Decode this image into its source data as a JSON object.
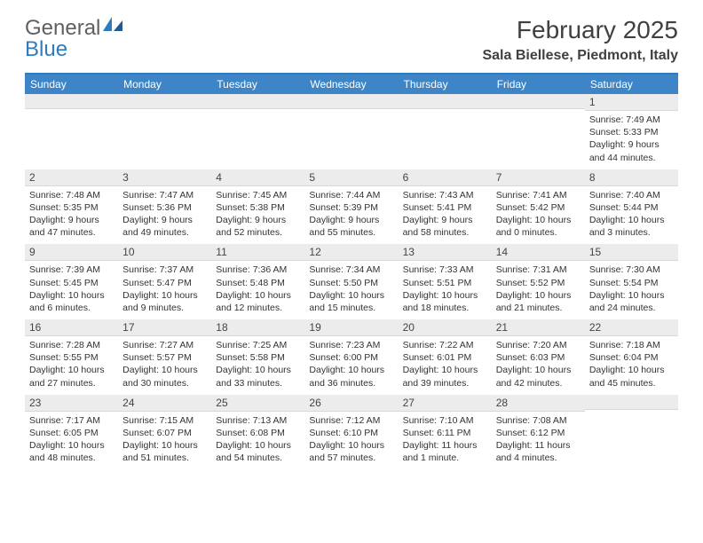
{
  "logo": {
    "part1": "General",
    "part2": "Blue"
  },
  "title": "February 2025",
  "location": "Sala Biellese, Piedmont, Italy",
  "colors": {
    "header_bar": "#3d85c6",
    "accent_border": "#2f7bbf",
    "daynum_bg": "#ececec",
    "text": "#333333"
  },
  "day_names": [
    "Sunday",
    "Monday",
    "Tuesday",
    "Wednesday",
    "Thursday",
    "Friday",
    "Saturday"
  ],
  "weeks": [
    [
      {
        "n": "",
        "sunrise": "",
        "sunset": "",
        "daylight1": "",
        "daylight2": ""
      },
      {
        "n": "",
        "sunrise": "",
        "sunset": "",
        "daylight1": "",
        "daylight2": ""
      },
      {
        "n": "",
        "sunrise": "",
        "sunset": "",
        "daylight1": "",
        "daylight2": ""
      },
      {
        "n": "",
        "sunrise": "",
        "sunset": "",
        "daylight1": "",
        "daylight2": ""
      },
      {
        "n": "",
        "sunrise": "",
        "sunset": "",
        "daylight1": "",
        "daylight2": ""
      },
      {
        "n": "",
        "sunrise": "",
        "sunset": "",
        "daylight1": "",
        "daylight2": ""
      },
      {
        "n": "1",
        "sunrise": "Sunrise: 7:49 AM",
        "sunset": "Sunset: 5:33 PM",
        "daylight1": "Daylight: 9 hours",
        "daylight2": "and 44 minutes."
      }
    ],
    [
      {
        "n": "2",
        "sunrise": "Sunrise: 7:48 AM",
        "sunset": "Sunset: 5:35 PM",
        "daylight1": "Daylight: 9 hours",
        "daylight2": "and 47 minutes."
      },
      {
        "n": "3",
        "sunrise": "Sunrise: 7:47 AM",
        "sunset": "Sunset: 5:36 PM",
        "daylight1": "Daylight: 9 hours",
        "daylight2": "and 49 minutes."
      },
      {
        "n": "4",
        "sunrise": "Sunrise: 7:45 AM",
        "sunset": "Sunset: 5:38 PM",
        "daylight1": "Daylight: 9 hours",
        "daylight2": "and 52 minutes."
      },
      {
        "n": "5",
        "sunrise": "Sunrise: 7:44 AM",
        "sunset": "Sunset: 5:39 PM",
        "daylight1": "Daylight: 9 hours",
        "daylight2": "and 55 minutes."
      },
      {
        "n": "6",
        "sunrise": "Sunrise: 7:43 AM",
        "sunset": "Sunset: 5:41 PM",
        "daylight1": "Daylight: 9 hours",
        "daylight2": "and 58 minutes."
      },
      {
        "n": "7",
        "sunrise": "Sunrise: 7:41 AM",
        "sunset": "Sunset: 5:42 PM",
        "daylight1": "Daylight: 10 hours",
        "daylight2": "and 0 minutes."
      },
      {
        "n": "8",
        "sunrise": "Sunrise: 7:40 AM",
        "sunset": "Sunset: 5:44 PM",
        "daylight1": "Daylight: 10 hours",
        "daylight2": "and 3 minutes."
      }
    ],
    [
      {
        "n": "9",
        "sunrise": "Sunrise: 7:39 AM",
        "sunset": "Sunset: 5:45 PM",
        "daylight1": "Daylight: 10 hours",
        "daylight2": "and 6 minutes."
      },
      {
        "n": "10",
        "sunrise": "Sunrise: 7:37 AM",
        "sunset": "Sunset: 5:47 PM",
        "daylight1": "Daylight: 10 hours",
        "daylight2": "and 9 minutes."
      },
      {
        "n": "11",
        "sunrise": "Sunrise: 7:36 AM",
        "sunset": "Sunset: 5:48 PM",
        "daylight1": "Daylight: 10 hours",
        "daylight2": "and 12 minutes."
      },
      {
        "n": "12",
        "sunrise": "Sunrise: 7:34 AM",
        "sunset": "Sunset: 5:50 PM",
        "daylight1": "Daylight: 10 hours",
        "daylight2": "and 15 minutes."
      },
      {
        "n": "13",
        "sunrise": "Sunrise: 7:33 AM",
        "sunset": "Sunset: 5:51 PM",
        "daylight1": "Daylight: 10 hours",
        "daylight2": "and 18 minutes."
      },
      {
        "n": "14",
        "sunrise": "Sunrise: 7:31 AM",
        "sunset": "Sunset: 5:52 PM",
        "daylight1": "Daylight: 10 hours",
        "daylight2": "and 21 minutes."
      },
      {
        "n": "15",
        "sunrise": "Sunrise: 7:30 AM",
        "sunset": "Sunset: 5:54 PM",
        "daylight1": "Daylight: 10 hours",
        "daylight2": "and 24 minutes."
      }
    ],
    [
      {
        "n": "16",
        "sunrise": "Sunrise: 7:28 AM",
        "sunset": "Sunset: 5:55 PM",
        "daylight1": "Daylight: 10 hours",
        "daylight2": "and 27 minutes."
      },
      {
        "n": "17",
        "sunrise": "Sunrise: 7:27 AM",
        "sunset": "Sunset: 5:57 PM",
        "daylight1": "Daylight: 10 hours",
        "daylight2": "and 30 minutes."
      },
      {
        "n": "18",
        "sunrise": "Sunrise: 7:25 AM",
        "sunset": "Sunset: 5:58 PM",
        "daylight1": "Daylight: 10 hours",
        "daylight2": "and 33 minutes."
      },
      {
        "n": "19",
        "sunrise": "Sunrise: 7:23 AM",
        "sunset": "Sunset: 6:00 PM",
        "daylight1": "Daylight: 10 hours",
        "daylight2": "and 36 minutes."
      },
      {
        "n": "20",
        "sunrise": "Sunrise: 7:22 AM",
        "sunset": "Sunset: 6:01 PM",
        "daylight1": "Daylight: 10 hours",
        "daylight2": "and 39 minutes."
      },
      {
        "n": "21",
        "sunrise": "Sunrise: 7:20 AM",
        "sunset": "Sunset: 6:03 PM",
        "daylight1": "Daylight: 10 hours",
        "daylight2": "and 42 minutes."
      },
      {
        "n": "22",
        "sunrise": "Sunrise: 7:18 AM",
        "sunset": "Sunset: 6:04 PM",
        "daylight1": "Daylight: 10 hours",
        "daylight2": "and 45 minutes."
      }
    ],
    [
      {
        "n": "23",
        "sunrise": "Sunrise: 7:17 AM",
        "sunset": "Sunset: 6:05 PM",
        "daylight1": "Daylight: 10 hours",
        "daylight2": "and 48 minutes."
      },
      {
        "n": "24",
        "sunrise": "Sunrise: 7:15 AM",
        "sunset": "Sunset: 6:07 PM",
        "daylight1": "Daylight: 10 hours",
        "daylight2": "and 51 minutes."
      },
      {
        "n": "25",
        "sunrise": "Sunrise: 7:13 AM",
        "sunset": "Sunset: 6:08 PM",
        "daylight1": "Daylight: 10 hours",
        "daylight2": "and 54 minutes."
      },
      {
        "n": "26",
        "sunrise": "Sunrise: 7:12 AM",
        "sunset": "Sunset: 6:10 PM",
        "daylight1": "Daylight: 10 hours",
        "daylight2": "and 57 minutes."
      },
      {
        "n": "27",
        "sunrise": "Sunrise: 7:10 AM",
        "sunset": "Sunset: 6:11 PM",
        "daylight1": "Daylight: 11 hours",
        "daylight2": "and 1 minute."
      },
      {
        "n": "28",
        "sunrise": "Sunrise: 7:08 AM",
        "sunset": "Sunset: 6:12 PM",
        "daylight1": "Daylight: 11 hours",
        "daylight2": "and 4 minutes."
      },
      {
        "n": "",
        "sunrise": "",
        "sunset": "",
        "daylight1": "",
        "daylight2": ""
      }
    ]
  ]
}
